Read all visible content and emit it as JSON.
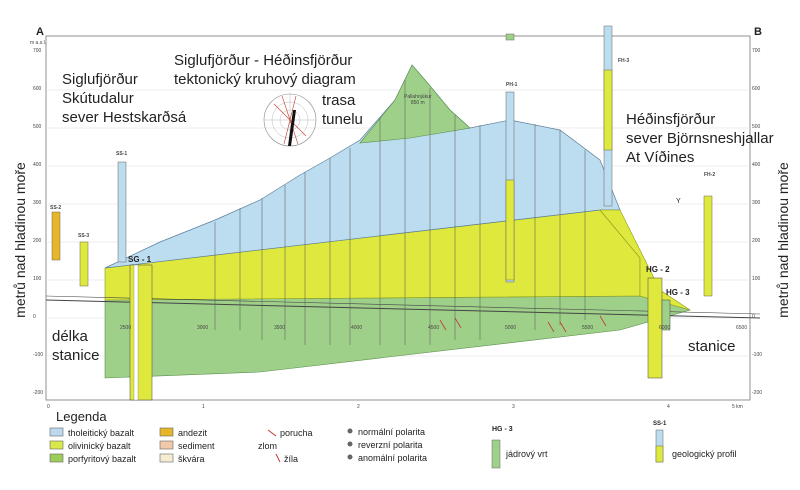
{
  "corner_left": "A",
  "corner_right": "B",
  "unit_top": "m a.s.l.",
  "title": {
    "line1": "Siglufjörður - Héðinsfjörður",
    "line2": "tektonický kruhový diagram"
  },
  "rose_label": {
    "line1": "trasa",
    "line2": "tunelu"
  },
  "left_location": {
    "line1": "Siglufjörður",
    "line2": "Skútudalur",
    "line3": "sever Hestskarðsá"
  },
  "right_location": {
    "line1": "Héðinsfjörður",
    "line2": "sever Björnsneshjallar",
    "line3": "At Víðines"
  },
  "y_axis_label": "metrů nad hladinou moře",
  "station_label_left": {
    "line1": "délka",
    "line2": "stanice"
  },
  "station_label_right": "stanice",
  "peak_label": {
    "line1": "Pallahnjúkur",
    "line2": "850 m"
  },
  "km_label": "5 km",
  "marker_y": "Y",
  "elevation_ticks": [
    "700",
    "600",
    "500",
    "400",
    "300",
    "200",
    "100",
    "0",
    "-100",
    "-200"
  ],
  "station_ticks": [
    "2500",
    "3000",
    "3500",
    "4000",
    "4500",
    "5000",
    "5500",
    "6000",
    "6500"
  ],
  "km_ticks": [
    "0",
    "1",
    "2",
    "3",
    "4"
  ],
  "boreholes": [
    {
      "id": "SS-2"
    },
    {
      "id": "SS-3"
    },
    {
      "id": "SS-1"
    },
    {
      "id": "SG - 1"
    },
    {
      "id": "PH-1"
    },
    {
      "id": "FH-3"
    },
    {
      "id": "FH-2"
    },
    {
      "id": "HG - 2"
    },
    {
      "id": "HG - 3"
    }
  ],
  "legend": {
    "title": "Legenda",
    "rocks": [
      {
        "label": "tholeitický bazalt",
        "color": "#bcd9ef"
      },
      {
        "label": "olivinický bazalt",
        "color": "#d8e84a"
      },
      {
        "label": "porfyritový bazalt",
        "color": "#9ccc5a"
      },
      {
        "label": "andezit",
        "color": "#e6b628"
      },
      {
        "label": "sediment",
        "color": "#f2c9a8"
      },
      {
        "label": "škvára",
        "color": "#f6ecd2"
      }
    ],
    "zlom": "zlom",
    "porucha": "porucha",
    "zila": "žíla",
    "polarity": [
      "normální polarita",
      "reverzní polarita",
      "anomální polarita"
    ],
    "core_id": "HG - 3",
    "core_label": "jádrový vrt",
    "profile_id": "SS-1",
    "profile_label": "geologický profil"
  }
}
